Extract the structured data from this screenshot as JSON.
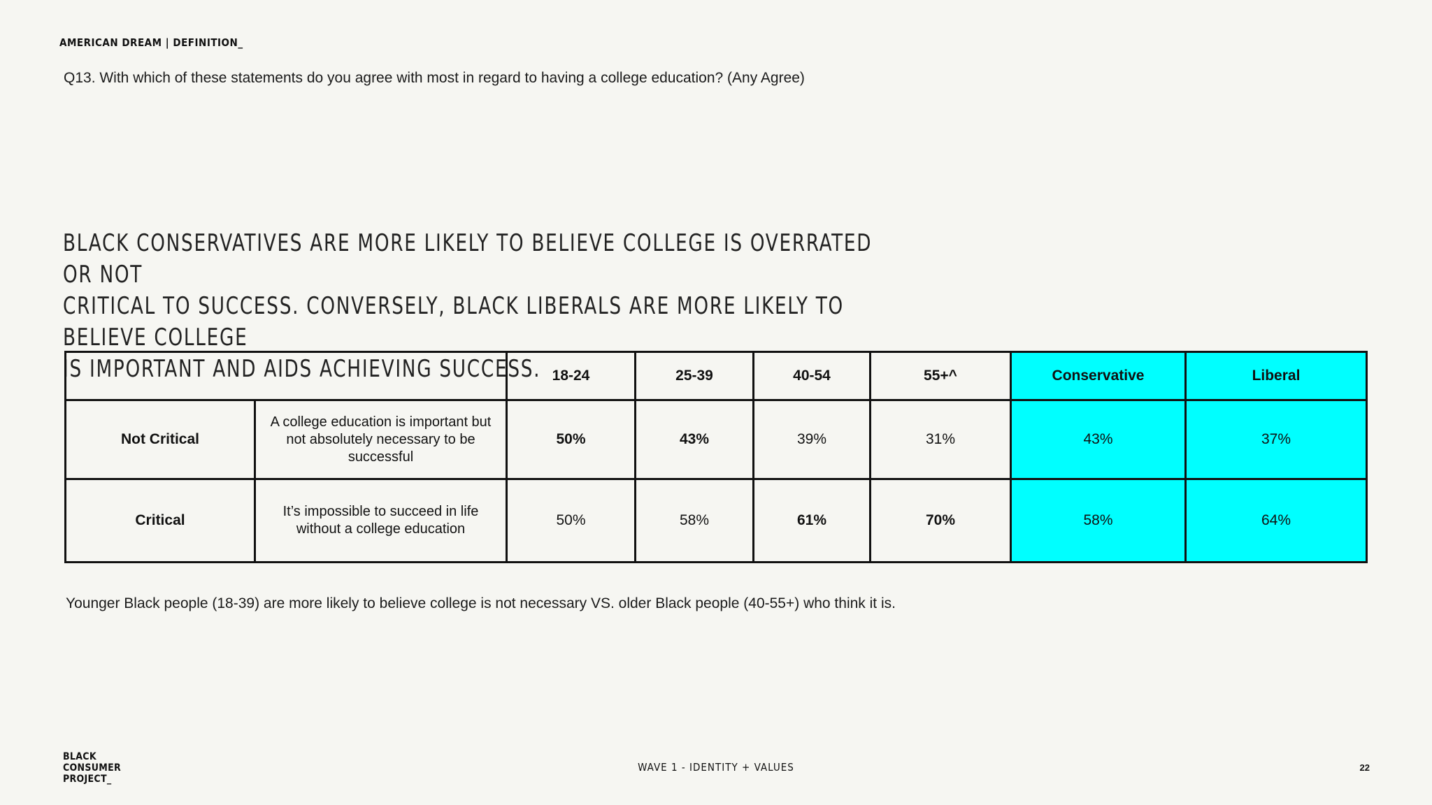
{
  "header": {
    "section": "AMERICAN DREAM | DEFINITION_",
    "question": "Q13. With which of these statements do you agree with most in regard to having a college education? (Any Agree)"
  },
  "headline": "BLACK CONSERVATIVES ARE MORE LIKELY TO BELIEVE COLLEGE IS OVERRATED OR NOT\nCRITICAL TO SUCCESS. CONVERSELY, BLACK LIBERALS ARE MORE LIKELY TO BELIEVE COLLEGE\nIS IMPORTANT AND AIDS ACHIEVING SUCCESS.",
  "table": {
    "columns": [
      "18-24",
      "25-39",
      "40-54",
      "55+^",
      "Conservative",
      "Liberal"
    ],
    "rows": [
      {
        "label": "Not Critical",
        "statement": "A college education is important but not absolutely necessary to be successful",
        "values": [
          "50%",
          "43%",
          "39%",
          "31%",
          "43%",
          "37%"
        ]
      },
      {
        "label": "Critical",
        "statement": "It’s impossible to succeed in life without a college education",
        "values": [
          "50%",
          "58%",
          "61%",
          "70%",
          "58%",
          "64%"
        ]
      }
    ],
    "highlight_color": "#00ffff"
  },
  "footnote": "Younger Black people (18-39) are more likely to believe college is not necessary VS. older Black people (40-55+) who think it is.",
  "footer": {
    "logo_lines": [
      "BLACK",
      "CONSUMER",
      "PROJECT_"
    ],
    "wave": "WAVE 1 - IDENTITY + VALUES",
    "page": "22"
  }
}
